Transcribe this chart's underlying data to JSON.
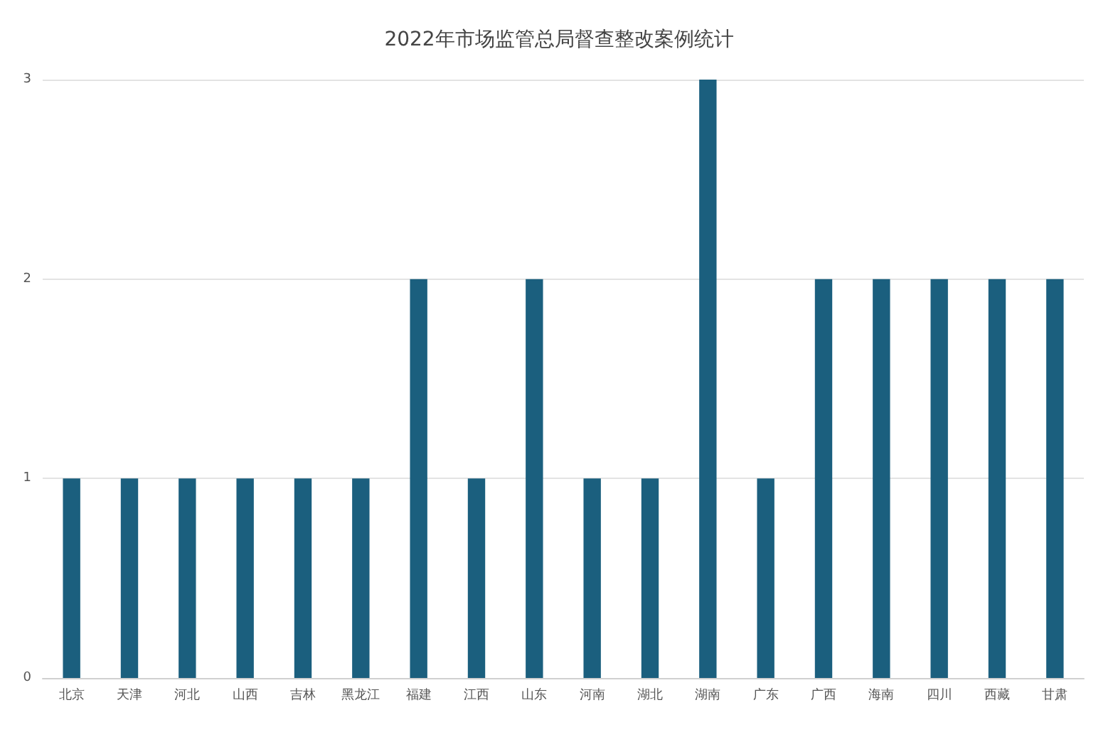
{
  "chart_data": {
    "type": "bar",
    "title": "2022年市场监管总局督查整改案例统计",
    "categories": [
      "北京",
      "天津",
      "河北",
      "山西",
      "吉林",
      "黑龙江",
      "福建",
      "江西",
      "山东",
      "河南",
      "湖北",
      "湖南",
      "广东",
      "广西",
      "海南",
      "四川",
      "西藏",
      "甘肃"
    ],
    "values": [
      1,
      1,
      1,
      1,
      1,
      1,
      2,
      1,
      2,
      1,
      1,
      3,
      1,
      2,
      2,
      2,
      2,
      2
    ],
    "color": "#1b5f7e",
    "ylim": [
      0,
      3
    ],
    "yticks": [
      0,
      1,
      2,
      3
    ],
    "grid": "y"
  }
}
